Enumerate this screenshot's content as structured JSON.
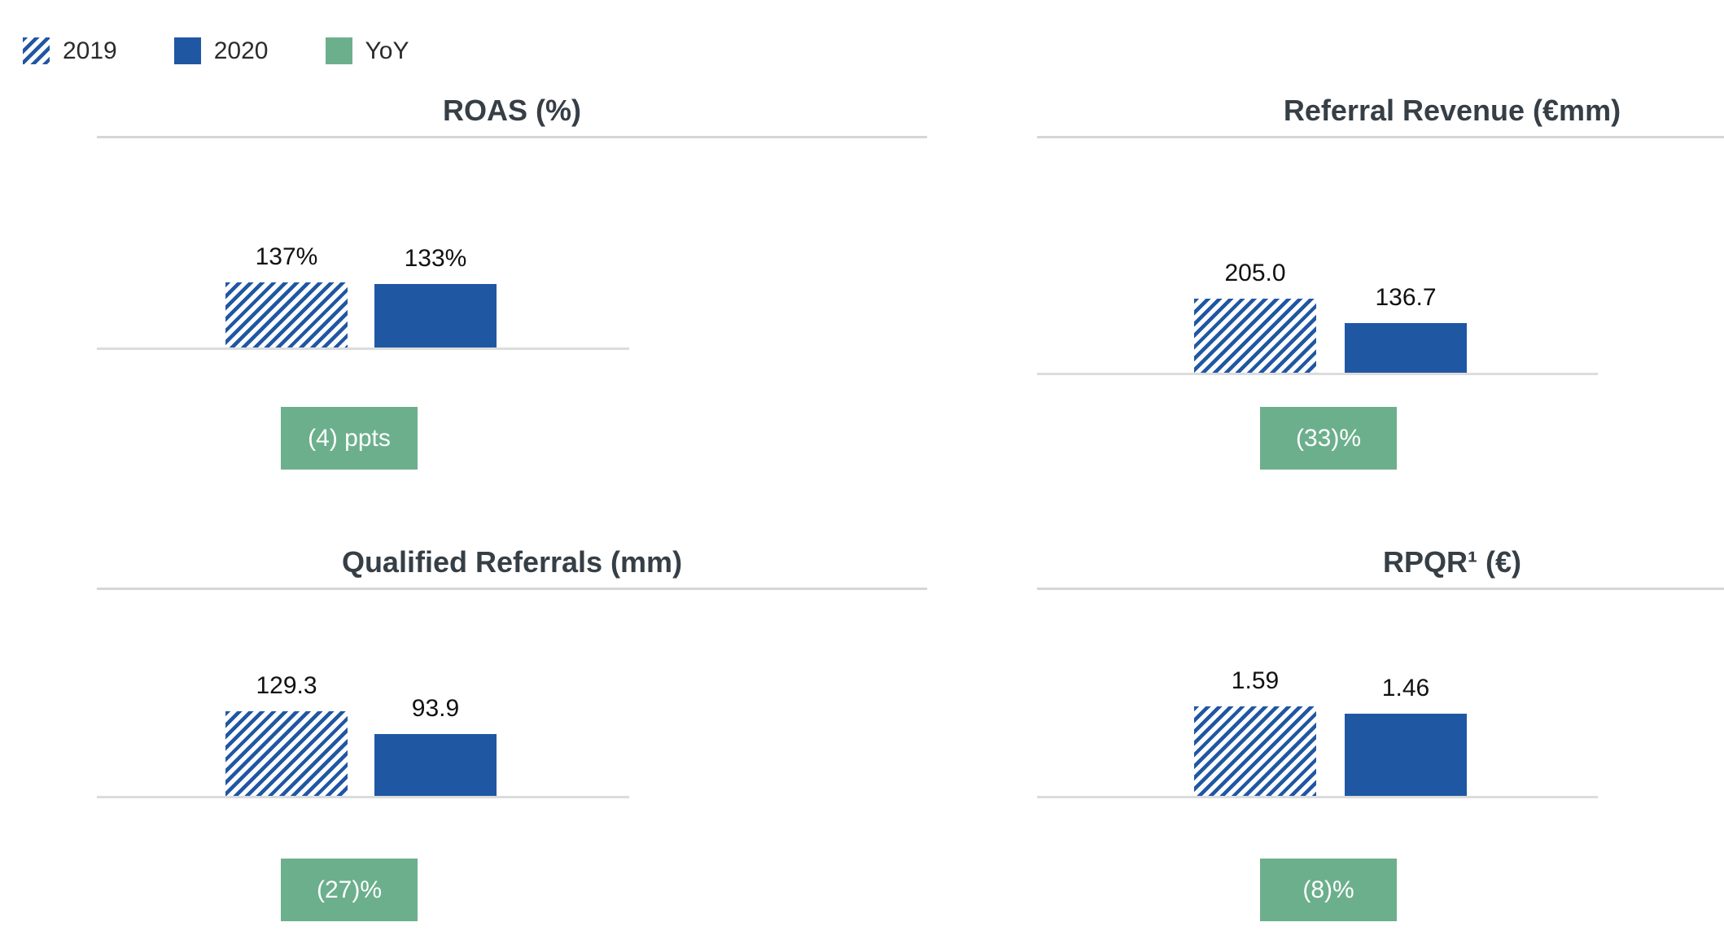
{
  "legend": {
    "items": [
      {
        "label": "2019",
        "swatch": "hatched-blue"
      },
      {
        "label": "2020",
        "swatch": "solid-blue"
      },
      {
        "label": "YoY",
        "swatch": "solid-green"
      }
    ]
  },
  "colors": {
    "bar_blue": "#2057A3",
    "yoy_green": "#6CAF8C",
    "title_text": "#363E46",
    "rule_gray": "#D6D6D6"
  },
  "chart_data": [
    {
      "type": "bar",
      "title": "ROAS (%)",
      "categories": [
        "2019",
        "2020"
      ],
      "series": [
        {
          "name": "2019",
          "value": 137,
          "label": "137%"
        },
        {
          "name": "2020",
          "value": 133,
          "label": "133%"
        }
      ],
      "yoy_badge": "(4) ppts",
      "ylim": [
        0,
        155
      ],
      "grid": false,
      "legend_position": "top-left-shared"
    },
    {
      "type": "bar",
      "title": "Referral Revenue (€mm)",
      "categories": [
        "2019",
        "2020"
      ],
      "series": [
        {
          "name": "2019",
          "value": 205.0,
          "label": "205.0"
        },
        {
          "name": "2020",
          "value": 136.7,
          "label": "136.7"
        }
      ],
      "yoy_badge": "(33)%",
      "ylim": [
        0,
        230
      ],
      "grid": false,
      "legend_position": "top-left-shared"
    },
    {
      "type": "bar",
      "title": "Qualified Referrals (mm)",
      "categories": [
        "2019",
        "2020"
      ],
      "series": [
        {
          "name": "2019",
          "value": 129.3,
          "label": "129.3"
        },
        {
          "name": "2020",
          "value": 93.9,
          "label": "93.9"
        }
      ],
      "yoy_badge": "(27)%",
      "ylim": [
        0,
        145
      ],
      "grid": false,
      "legend_position": "top-left-shared"
    },
    {
      "type": "bar",
      "title": "RPQR¹ (€)",
      "categories": [
        "2019",
        "2020"
      ],
      "series": [
        {
          "name": "2019",
          "value": 1.59,
          "label": "1.59"
        },
        {
          "name": "2020",
          "value": 1.46,
          "label": "1.46"
        }
      ],
      "yoy_badge": "(8)%",
      "ylim": [
        0,
        1.8
      ],
      "grid": false,
      "legend_position": "top-left-shared"
    }
  ]
}
